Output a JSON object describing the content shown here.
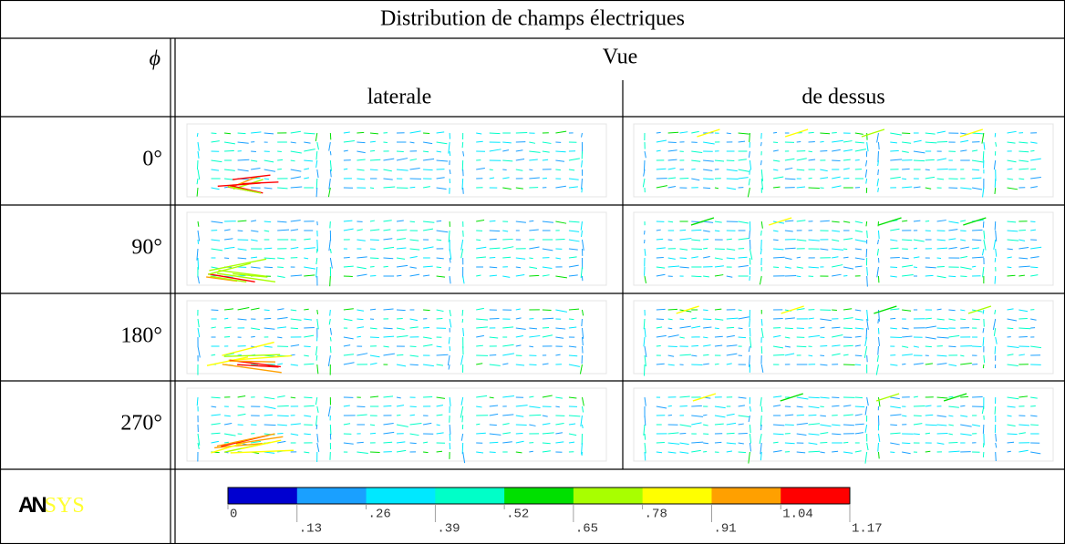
{
  "title": "Distribution de champs électriques",
  "header": {
    "phi": "ϕ",
    "view": "Vue",
    "columns": [
      "laterale",
      "de dessus"
    ]
  },
  "rows": [
    "0°",
    "90°",
    "180°",
    "270°"
  ],
  "logo": [
    "AN",
    "SYS"
  ],
  "colorbar": {
    "labels": [
      "0",
      ".13",
      ".26",
      ".39",
      ".52",
      ".65",
      ".78",
      ".91",
      "1.04",
      "1.17"
    ],
    "colors": [
      "#0000d0",
      "#1aa0ff",
      "#00e8ff",
      "#00ffc8",
      "#00e000",
      "#a8ff00",
      "#ffff00",
      "#ffa000",
      "#ff0000"
    ]
  }
}
